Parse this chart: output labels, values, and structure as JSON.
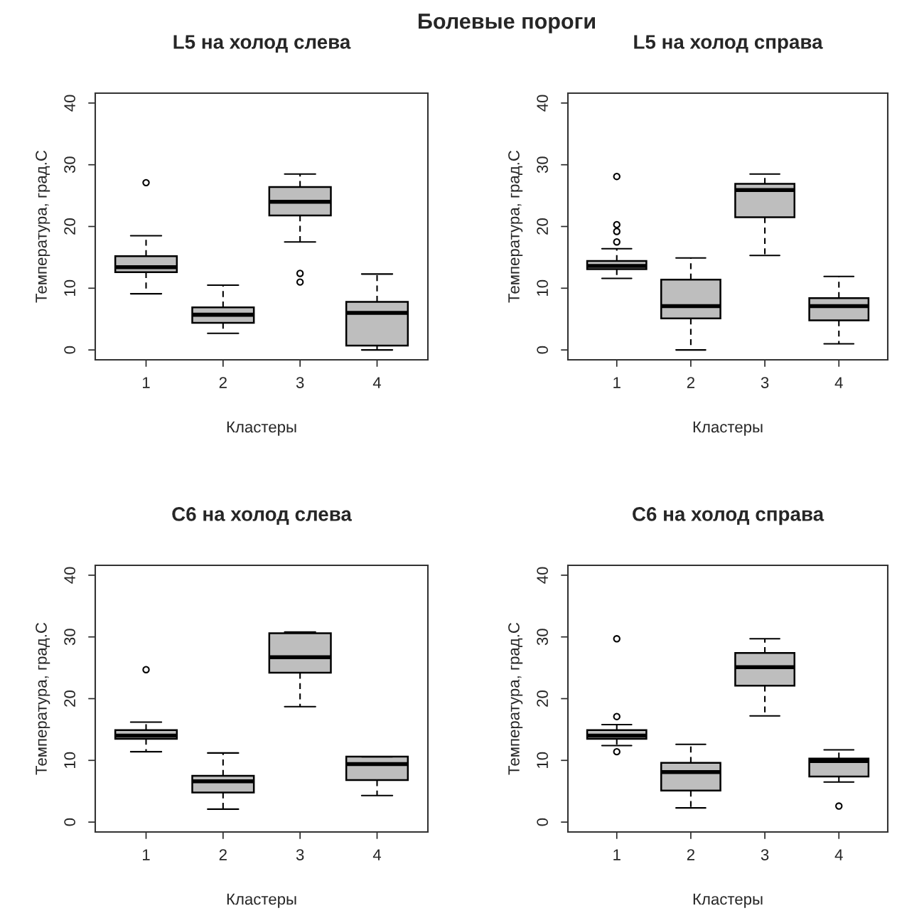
{
  "chart_data": [
    {
      "type": "box",
      "title": "L5 на холод слева",
      "xlabel": "Кластеры",
      "ylabel": "Температура, град.С",
      "annotations": [
        "Болевые пороги"
      ],
      "categories": [
        "1",
        "2",
        "3",
        "4"
      ],
      "ylim": [
        -1.6,
        41.6
      ],
      "yticks": [
        0,
        10,
        20,
        30,
        40
      ],
      "color": "#bebebe",
      "boxes": [
        {
          "low": 9.1,
          "q1": 12.6,
          "median": 13.4,
          "q3": 15.2,
          "high": 18.5,
          "outliers": [
            27.1
          ]
        },
        {
          "low": 2.7,
          "q1": 4.4,
          "median": 5.7,
          "q3": 6.9,
          "high": 10.5
        },
        {
          "low": 17.5,
          "q1": 21.8,
          "median": 24.0,
          "q3": 26.4,
          "high": 28.5,
          "outliers": [
            12.4,
            11.0
          ]
        },
        {
          "low": 0.0,
          "q1": 0.7,
          "median": 6.0,
          "q3": 7.8,
          "high": 12.3
        }
      ]
    },
    {
      "type": "box",
      "title": "L5 на холод справа",
      "xlabel": "Кластеры",
      "ylabel": "Температура, град.С",
      "categories": [
        "1",
        "2",
        "3",
        "4"
      ],
      "ylim": [
        -1.6,
        41.6
      ],
      "yticks": [
        0,
        10,
        20,
        30,
        40
      ],
      "color": "#bebebe",
      "boxes": [
        {
          "low": 11.6,
          "q1": 13.1,
          "median": 13.6,
          "q3": 14.4,
          "high": 16.4,
          "outliers": [
            28.1,
            20.3,
            19.2,
            17.5
          ]
        },
        {
          "low": 0.0,
          "q1": 5.1,
          "median": 7.1,
          "q3": 11.4,
          "high": 14.9
        },
        {
          "low": 15.3,
          "q1": 21.5,
          "median": 25.9,
          "q3": 26.9,
          "high": 28.5
        },
        {
          "low": 1.0,
          "q1": 4.8,
          "median": 7.1,
          "q3": 8.4,
          "high": 11.9
        }
      ]
    },
    {
      "type": "box",
      "title": "C6 на холод слева",
      "xlabel": "Кластеры",
      "ylabel": "Температура, град.С",
      "categories": [
        "1",
        "2",
        "3",
        "4"
      ],
      "ylim": [
        -1.6,
        41.6
      ],
      "yticks": [
        0,
        10,
        20,
        30,
        40
      ],
      "color": "#bebebe",
      "boxes": [
        {
          "low": 11.4,
          "q1": 13.5,
          "median": 14.0,
          "q3": 14.9,
          "high": 16.2,
          "outliers": [
            24.7
          ]
        },
        {
          "low": 2.1,
          "q1": 4.8,
          "median": 6.6,
          "q3": 7.5,
          "high": 11.2
        },
        {
          "low": 18.7,
          "q1": 24.2,
          "median": 26.7,
          "q3": 30.6,
          "high": 30.8
        },
        {
          "low": 4.3,
          "q1": 6.8,
          "median": 9.4,
          "q3": 10.6,
          "high": 10.6
        }
      ]
    },
    {
      "type": "box",
      "title": "C6 на холод справа",
      "xlabel": "Кластеры",
      "ylabel": "Температура, град.С",
      "categories": [
        "1",
        "2",
        "3",
        "4"
      ],
      "ylim": [
        -1.6,
        41.6
      ],
      "yticks": [
        0,
        10,
        20,
        30,
        40
      ],
      "color": "#bebebe",
      "boxes": [
        {
          "low": 12.4,
          "q1": 13.5,
          "median": 14.0,
          "q3": 14.9,
          "high": 15.8,
          "outliers": [
            29.7,
            17.1,
            11.4
          ]
        },
        {
          "low": 2.3,
          "q1": 5.1,
          "median": 8.1,
          "q3": 9.6,
          "high": 12.6
        },
        {
          "low": 17.2,
          "q1": 22.1,
          "median": 25.1,
          "q3": 27.4,
          "high": 29.7
        },
        {
          "low": 6.5,
          "q1": 7.4,
          "median": 9.9,
          "q3": 10.3,
          "high": 11.7,
          "outliers": [
            2.6
          ]
        }
      ]
    }
  ]
}
